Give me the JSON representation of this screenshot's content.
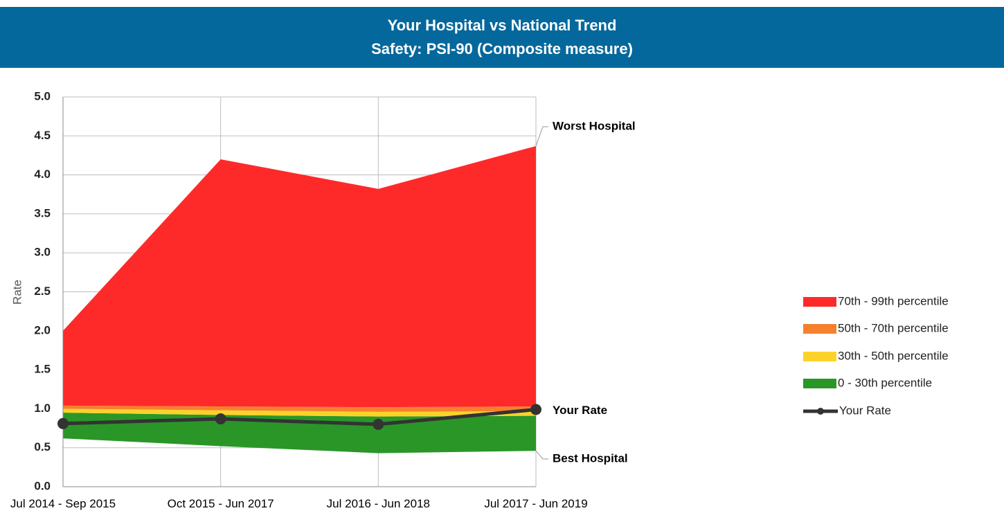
{
  "chart_data": {
    "type": "stacked_area_line",
    "title": "Your Hospital vs National Trend",
    "subtitle": "Safety: PSI-90 (Composite measure)",
    "y_label": "Rate",
    "categories": [
      "Jul 2014 - Sep 2015",
      "Oct 2015 - Jun 2017",
      "Jul 2016 - Jun 2018",
      "Jul 2017 - Jun 2019"
    ],
    "base": {
      "name": "Best Hospital",
      "values": [
        0.62,
        0.52,
        0.43,
        0.46
      ]
    },
    "series": [
      {
        "name": "0 - 30th percentile",
        "color": "#2a9628",
        "values": [
          0.33,
          0.4,
          0.47,
          0.45
        ]
      },
      {
        "name": "30th - 50th percentile",
        "color": "#fcd22a",
        "values": [
          0.05,
          0.06,
          0.06,
          0.06
        ]
      },
      {
        "name": "50th - 70th percentile",
        "color": "#f6802e",
        "values": [
          0.04,
          0.05,
          0.06,
          0.06
        ]
      },
      {
        "name": "70th - 99th percentile",
        "color": "#fe2a2a",
        "values": [
          0.96,
          3.17,
          2.8,
          3.34
        ]
      }
    ],
    "line": {
      "name": "Your Rate",
      "color": "#333333",
      "values": [
        0.81,
        0.87,
        0.8,
        0.99
      ]
    },
    "annotations": {
      "worst": "Worst Hospital",
      "rate": "Your Rate",
      "best": "Best Hospital"
    },
    "ylim": [
      0,
      5
    ],
    "yticks": [
      {
        "value": 0,
        "label": "0.0"
      },
      0.5,
      {
        "value": 1,
        "label": "1.0"
      },
      1.5,
      {
        "value": 2,
        "label": "2.0"
      },
      2.5,
      {
        "value": 3,
        "label": "3.0"
      },
      3.5,
      {
        "value": 4,
        "label": "4.0"
      },
      4.5,
      {
        "value": 5,
        "label": "5.0"
      }
    ],
    "grid": true,
    "legend": "right"
  }
}
